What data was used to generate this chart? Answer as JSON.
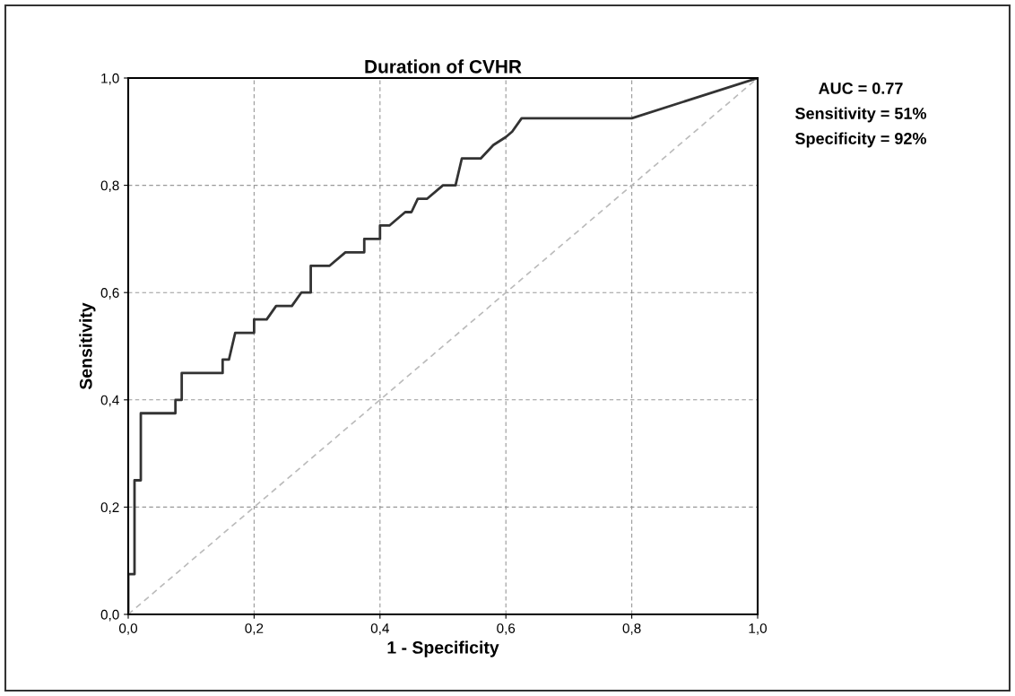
{
  "chart_data": {
    "type": "line",
    "title": "Duration of CVHR",
    "xlabel": "1 - Specificity",
    "ylabel": "Sensitivity",
    "annotations": [
      "AUC = 0.77",
      "Sensitivity = 51%",
      "Specificity = 92%"
    ],
    "series": [
      {
        "color": "#333333",
        "line_style": "solid",
        "x": [
          0,
          0,
          0.01,
          0.01,
          0.02,
          0.02,
          0.075,
          0.075,
          0.085,
          0.085,
          0.15,
          0.15,
          0.16,
          0.17,
          0.2,
          0.2,
          0.22,
          0.235,
          0.26,
          0.275,
          0.29,
          0.29,
          0.32,
          0.345,
          0.375,
          0.375,
          0.4,
          0.4,
          0.415,
          0.44,
          0.45,
          0.46,
          0.475,
          0.5,
          0.52,
          0.53,
          0.56,
          0.58,
          0.6,
          0.61,
          0.625,
          0.8,
          1
        ],
        "values": [
          0,
          0.075,
          0.075,
          0.25,
          0.25,
          0.375,
          0.375,
          0.4,
          0.4,
          0.45,
          0.45,
          0.475,
          0.475,
          0.525,
          0.525,
          0.55,
          0.55,
          0.575,
          0.575,
          0.6,
          0.6,
          0.65,
          0.65,
          0.675,
          0.675,
          0.7,
          0.7,
          0.725,
          0.725,
          0.75,
          0.75,
          0.775,
          0.775,
          0.8,
          0.8,
          0.85,
          0.85,
          0.875,
          0.89,
          0.9,
          0.925,
          0.925,
          1
        ]
      },
      {
        "color": "#bbbbbb",
        "line_style": "dashed",
        "x": [
          0,
          1
        ],
        "values": [
          0,
          1
        ]
      }
    ],
    "xlim": [
      0,
      1
    ],
    "ylim": [
      0,
      1
    ],
    "xticks": [
      {
        "value": 0,
        "label": "0,0"
      },
      {
        "value": 0.2,
        "label": "0,2"
      },
      {
        "value": 0.4,
        "label": "0,4"
      },
      {
        "value": 0.6,
        "label": "0,6"
      },
      {
        "value": 0.8,
        "label": "0,8"
      },
      {
        "value": 1,
        "label": "1,0"
      }
    ],
    "yticks": [
      {
        "value": 0,
        "label": "0,0"
      },
      {
        "value": 0.2,
        "label": "0,2"
      },
      {
        "value": 0.4,
        "label": "0,4"
      },
      {
        "value": 0.6,
        "label": "0,6"
      },
      {
        "value": 0.8,
        "label": "0,8"
      },
      {
        "value": 1,
        "label": "1,0"
      }
    ],
    "grid": true,
    "legend": false
  }
}
